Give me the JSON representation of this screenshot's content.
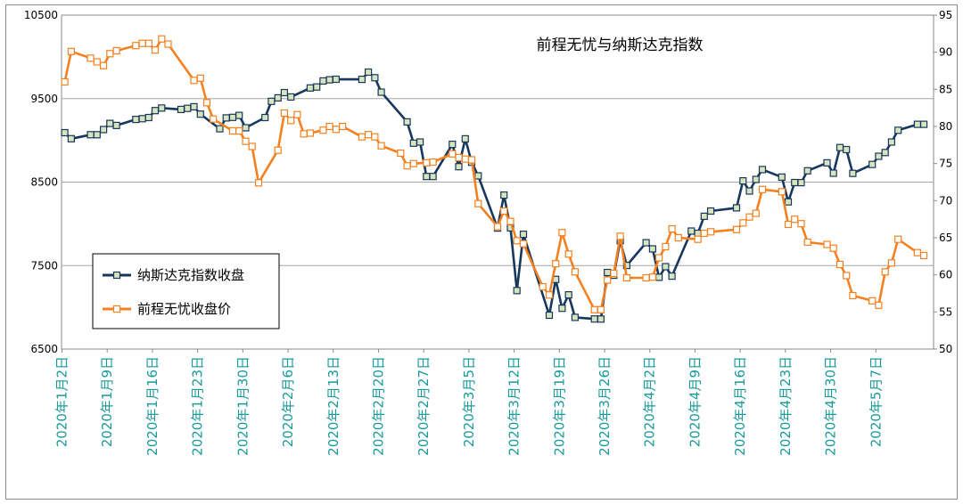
{
  "chart_data": {
    "type": "line",
    "title": "前程无忧与纳斯达克指数",
    "left_axis": {
      "ylim": [
        6500,
        10500
      ],
      "ticks": [
        "6500",
        "7500",
        "8500",
        "9500",
        "10500"
      ]
    },
    "right_axis": {
      "ylim": [
        50,
        95
      ],
      "ticks": [
        "50",
        "55",
        "60",
        "65",
        "70",
        "75",
        "80",
        "85",
        "90",
        "95"
      ]
    },
    "x_tick_labels": [
      "2020年1月2日",
      "2020年1月9日",
      "2020年1月16日",
      "2020年1月23日",
      "2020年1月30日",
      "2020年2月6日",
      "2020年2月13日",
      "2020年2月20日",
      "2020年2月27日",
      "2020年3月5日",
      "2020年3月12日",
      "2020年3月19日",
      "2020年3月26日",
      "2020年4月2日",
      "2020年4月9日",
      "2020年4月16日",
      "2020年4月23日",
      "2020年4月30日",
      "2020年5月7日"
    ],
    "grid": true,
    "legend_position": "bottom-left",
    "series": [
      {
        "name": "纳斯达克指数收盘",
        "axis": "left",
        "color": "#17375e",
        "values": [
          [
            0,
            9092
          ],
          [
            1,
            9020
          ],
          [
            4,
            9068
          ],
          [
            5,
            9068
          ],
          [
            6,
            9129
          ],
          [
            7,
            9203
          ],
          [
            8,
            9178
          ],
          [
            11,
            9251
          ],
          [
            12,
            9259
          ],
          [
            13,
            9273
          ],
          [
            14,
            9357
          ],
          [
            15,
            9388
          ],
          [
            18,
            9370
          ],
          [
            19,
            9383
          ],
          [
            20,
            9402
          ],
          [
            21,
            9314
          ],
          [
            24,
            9139
          ],
          [
            25,
            9269
          ],
          [
            26,
            9275
          ],
          [
            27,
            9299
          ],
          [
            28,
            9151
          ],
          [
            31,
            9273
          ],
          [
            32,
            9467
          ],
          [
            33,
            9509
          ],
          [
            34,
            9572
          ],
          [
            35,
            9520
          ],
          [
            38,
            9628
          ],
          [
            39,
            9639
          ],
          [
            40,
            9712
          ],
          [
            41,
            9726
          ],
          [
            42,
            9732
          ],
          [
            46,
            9731
          ],
          [
            47,
            9817
          ],
          [
            48,
            9750
          ],
          [
            49,
            9577
          ],
          [
            53,
            9221
          ],
          [
            54,
            8966
          ],
          [
            55,
            8980
          ],
          [
            56,
            8567
          ],
          [
            57,
            8567
          ],
          [
            60,
            8952
          ],
          [
            61,
            8685
          ],
          [
            62,
            9018
          ],
          [
            63,
            8738
          ],
          [
            64,
            8575
          ],
          [
            67,
            7950
          ],
          [
            68,
            8344
          ],
          [
            69,
            7952
          ],
          [
            70,
            7201
          ],
          [
            71,
            7875
          ],
          [
            75,
            6905
          ],
          [
            76,
            7334
          ],
          [
            77,
            6989
          ],
          [
            78,
            7150
          ],
          [
            79,
            6880
          ],
          [
            82,
            6861
          ],
          [
            83,
            6860
          ],
          [
            84,
            7417
          ],
          [
            85,
            7384
          ],
          [
            86,
            7798
          ],
          [
            87,
            7502
          ],
          [
            90,
            7774
          ],
          [
            91,
            7700
          ],
          [
            92,
            7360
          ],
          [
            93,
            7487
          ],
          [
            94,
            7374
          ],
          [
            97,
            7913
          ],
          [
            98,
            7887
          ],
          [
            99,
            8090
          ],
          [
            100,
            8153
          ],
          [
            104,
            8192
          ],
          [
            105,
            8515
          ],
          [
            106,
            8393
          ],
          [
            107,
            8532
          ],
          [
            108,
            8650
          ],
          [
            111,
            8560
          ],
          [
            112,
            8263
          ],
          [
            113,
            8495
          ],
          [
            114,
            8494
          ],
          [
            115,
            8635
          ],
          [
            118,
            8730
          ],
          [
            119,
            8607
          ],
          [
            120,
            8914
          ],
          [
            121,
            8889
          ],
          [
            122,
            8605
          ],
          [
            125,
            8711
          ],
          [
            126,
            8809
          ],
          [
            127,
            8854
          ],
          [
            128,
            8980
          ],
          [
            129,
            9121
          ],
          [
            132,
            9192
          ],
          [
            133,
            9192
          ]
        ]
      },
      {
        "name": "前程无忧收盘价",
        "axis": "right",
        "color": "#f4801f",
        "values": [
          [
            0,
            86.0
          ],
          [
            1,
            90.1
          ],
          [
            4,
            89.2
          ],
          [
            5,
            88.7
          ],
          [
            6,
            88.2
          ],
          [
            7,
            89.8
          ],
          [
            8,
            90.2
          ],
          [
            11,
            90.9
          ],
          [
            12,
            91.2
          ],
          [
            13,
            91.2
          ],
          [
            14,
            90.3
          ],
          [
            15,
            91.8
          ],
          [
            16,
            91.1
          ],
          [
            20,
            86.2
          ],
          [
            21,
            86.5
          ],
          [
            22,
            83.2
          ],
          [
            23,
            81.0
          ],
          [
            26,
            79.4
          ],
          [
            27,
            79.4
          ],
          [
            28,
            78.0
          ],
          [
            29,
            77.3
          ],
          [
            30,
            72.4
          ],
          [
            33,
            76.8
          ],
          [
            34,
            81.8
          ],
          [
            35,
            80.8
          ],
          [
            36,
            81.6
          ],
          [
            37,
            79.0
          ],
          [
            38,
            79.1
          ],
          [
            40,
            79.5
          ],
          [
            41,
            80.0
          ],
          [
            42,
            79.6
          ],
          [
            43,
            80.0
          ],
          [
            46,
            78.6
          ],
          [
            47,
            78.9
          ],
          [
            48,
            78.6
          ],
          [
            49,
            77.4
          ],
          [
            52,
            76.4
          ],
          [
            53,
            74.7
          ],
          [
            54,
            75.0
          ],
          [
            56,
            75.1
          ],
          [
            57,
            75.2
          ],
          [
            60,
            76.3
          ],
          [
            61,
            75.8
          ],
          [
            62,
            75.6
          ],
          [
            63,
            75.5
          ],
          [
            64,
            69.6
          ],
          [
            67,
            66.5
          ],
          [
            68,
            68.6
          ],
          [
            69,
            67.2
          ],
          [
            70,
            64.6
          ],
          [
            71,
            64.2
          ],
          [
            74,
            58.4
          ],
          [
            75,
            57.3
          ],
          [
            76,
            61.5
          ],
          [
            77,
            65.7
          ],
          [
            78,
            62.8
          ],
          [
            79,
            60.4
          ],
          [
            82,
            55.3
          ],
          [
            83,
            55.3
          ],
          [
            84,
            59.3
          ],
          [
            85,
            60.2
          ],
          [
            86,
            65.2
          ],
          [
            87,
            59.6
          ],
          [
            90,
            59.6
          ],
          [
            91,
            59.7
          ],
          [
            92,
            62.3
          ],
          [
            93,
            63.8
          ],
          [
            94,
            66.2
          ],
          [
            95,
            65.0
          ],
          [
            98,
            64.8
          ],
          [
            99,
            65.6
          ],
          [
            100,
            65.8
          ],
          [
            104,
            66.1
          ],
          [
            105,
            67.0
          ],
          [
            106,
            67.8
          ],
          [
            107,
            68.3
          ],
          [
            108,
            71.5
          ],
          [
            111,
            71.2
          ],
          [
            112,
            66.8
          ],
          [
            113,
            67.5
          ],
          [
            114,
            66.9
          ],
          [
            115,
            64.4
          ],
          [
            118,
            64.1
          ],
          [
            119,
            63.6
          ],
          [
            120,
            61.4
          ],
          [
            121,
            59.9
          ],
          [
            122,
            57.2
          ],
          [
            125,
            56.5
          ],
          [
            126,
            55.9
          ],
          [
            127,
            60.4
          ],
          [
            128,
            61.6
          ],
          [
            129,
            64.8
          ],
          [
            132,
            63.0
          ],
          [
            133,
            62.6
          ]
        ]
      }
    ]
  }
}
